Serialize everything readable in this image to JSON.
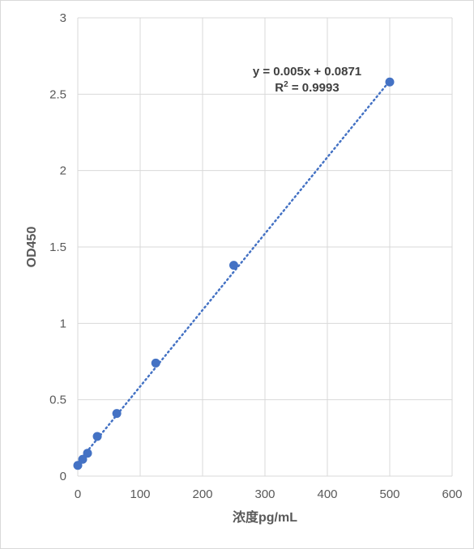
{
  "chart_data": {
    "type": "scatter",
    "xlabel": "浓度pg/mL",
    "ylabel": "OD450",
    "xlim": [
      0,
      600
    ],
    "ylim": [
      0,
      3
    ],
    "x_ticks": [
      "0",
      "100",
      "200",
      "300",
      "400",
      "500",
      "600"
    ],
    "y_ticks": [
      "0",
      "0.5",
      "1",
      "1.5",
      "2",
      "2.5",
      "3"
    ],
    "grid": true,
    "series": [
      {
        "x": [
          0,
          7.8,
          15.6,
          31.25,
          62.5,
          125,
          250,
          500
        ],
        "y": [
          0.07,
          0.11,
          0.15,
          0.26,
          0.41,
          0.74,
          1.38,
          2.58
        ]
      }
    ],
    "trendline": {
      "type": "linear",
      "slope": 0.005,
      "intercept": 0.0871,
      "style": "dotted",
      "equation": "y = 0.005x + 0.0871",
      "r2_prefix": "R",
      "r2_sup": "2",
      "r2_value": " = 0.9993"
    },
    "colors": {
      "marker": "#4472c4",
      "gridline": "#d9d9d9",
      "text": "#595959"
    }
  }
}
